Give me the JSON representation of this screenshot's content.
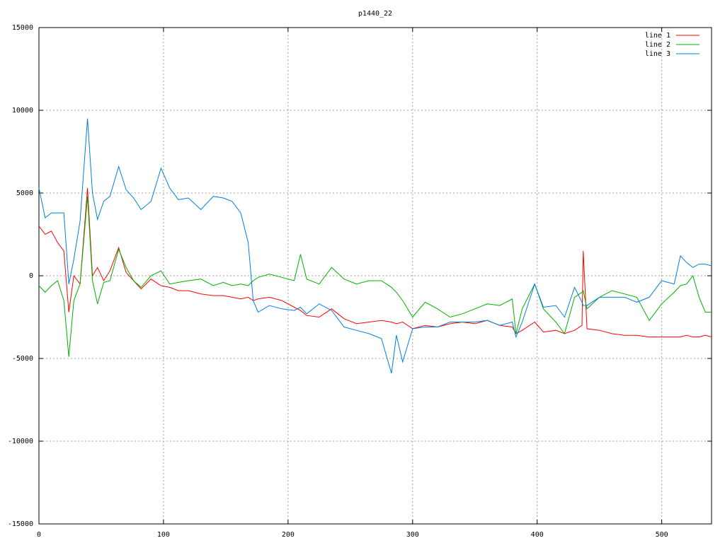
{
  "chart_data": {
    "type": "line",
    "title": "p1440_22",
    "x": [
      0,
      5,
      10,
      15,
      20,
      24,
      28,
      33,
      39,
      43,
      47,
      52,
      57,
      64,
      70,
      76,
      82,
      90,
      98,
      105,
      112,
      120,
      130,
      140,
      148,
      155,
      162,
      168,
      172,
      176,
      185,
      195,
      205,
      210,
      215,
      225,
      235,
      245,
      255,
      265,
      275,
      283,
      287,
      292,
      300,
      310,
      320,
      330,
      340,
      350,
      360,
      370,
      380,
      383,
      388,
      398,
      405,
      415,
      422,
      430,
      436,
      437,
      440,
      450,
      460,
      470,
      480,
      490,
      500,
      510,
      515,
      520,
      525,
      530,
      535,
      540
    ],
    "series": [
      {
        "name": "line 1",
        "color": "#ff0000",
        "values": [
          3000,
          2500,
          2700,
          2000,
          1500,
          -2200,
          0,
          -500,
          5300,
          0,
          500,
          -300,
          300,
          1700,
          200,
          -300,
          -800,
          -200,
          -600,
          -700,
          -900,
          -900,
          -1100,
          -1200,
          -1200,
          -1300,
          -1400,
          -1300,
          -1500,
          -1400,
          -1300,
          -1500,
          -1900,
          -2100,
          -2400,
          -2500,
          -2000,
          -2600,
          -2900,
          -2800,
          -2700,
          -2800,
          -2900,
          -2800,
          -3200,
          -3000,
          -3100,
          -2900,
          -2800,
          -2900,
          -2700,
          -3000,
          -3100,
          -3500,
          -3300,
          -2800,
          -3400,
          -3300,
          -3500,
          -3300,
          -3000,
          1500,
          -3200,
          -3300,
          -3500,
          -3600,
          -3600,
          -3700,
          -3700,
          -3700,
          -3700,
          -3600,
          -3700,
          -3700,
          -3600,
          -3700
        ]
      },
      {
        "name": "line 2",
        "color": "#00b000",
        "values": [
          -600,
          -1000,
          -600,
          -300,
          -1500,
          -4900,
          -1500,
          -500,
          4800,
          -300,
          -1700,
          -400,
          -300,
          1600,
          500,
          -300,
          -700,
          0,
          300,
          -500,
          -400,
          -300,
          -200,
          -600,
          -400,
          -600,
          -500,
          -600,
          -300,
          -100,
          100,
          -100,
          -300,
          1300,
          -200,
          -500,
          500,
          -200,
          -500,
          -300,
          -300,
          -700,
          -1000,
          -1500,
          -2500,
          -1600,
          -2000,
          -2500,
          -2300,
          -2000,
          -1700,
          -1800,
          -1400,
          -3500,
          -2000,
          -500,
          -2000,
          -2800,
          -3500,
          -1300,
          -1000,
          -900,
          -2000,
          -1300,
          -900,
          -1100,
          -1300,
          -2700,
          -1700,
          -1000,
          -600,
          -500,
          0,
          -1300,
          -2200,
          -2200
        ]
      },
      {
        "name": "line 3",
        "color": "#0080e0",
        "values": [
          5300,
          3500,
          3800,
          3800,
          3800,
          -500,
          1000,
          3300,
          9500,
          5000,
          3400,
          4500,
          4800,
          6600,
          5200,
          4700,
          4000,
          4500,
          6500,
          5300,
          4600,
          4700,
          4000,
          4800,
          4700,
          4500,
          3800,
          2000,
          -1500,
          -2200,
          -1800,
          -2000,
          -2100,
          -1900,
          -2300,
          -1700,
          -2100,
          -3100,
          -3300,
          -3500,
          -3800,
          -5900,
          -3600,
          -5200,
          -3200,
          -3100,
          -3100,
          -2800,
          -2800,
          -2800,
          -2700,
          -3000,
          -2800,
          -3700,
          -2800,
          -500,
          -1900,
          -1800,
          -2500,
          -700,
          -1600,
          -1800,
          -1800,
          -1300,
          -1300,
          -1300,
          -1600,
          -1300,
          -300,
          -500,
          1200,
          800,
          500,
          700,
          700,
          600
        ]
      }
    ],
    "xlim": [
      0,
      540
    ],
    "xticks": [
      0,
      100,
      200,
      300,
      400,
      500
    ],
    "ylim": [
      -15000,
      15000
    ],
    "yticks": [
      -15000,
      -10000,
      -5000,
      0,
      5000,
      10000,
      15000
    ],
    "grid": true,
    "legend": "top-right"
  }
}
